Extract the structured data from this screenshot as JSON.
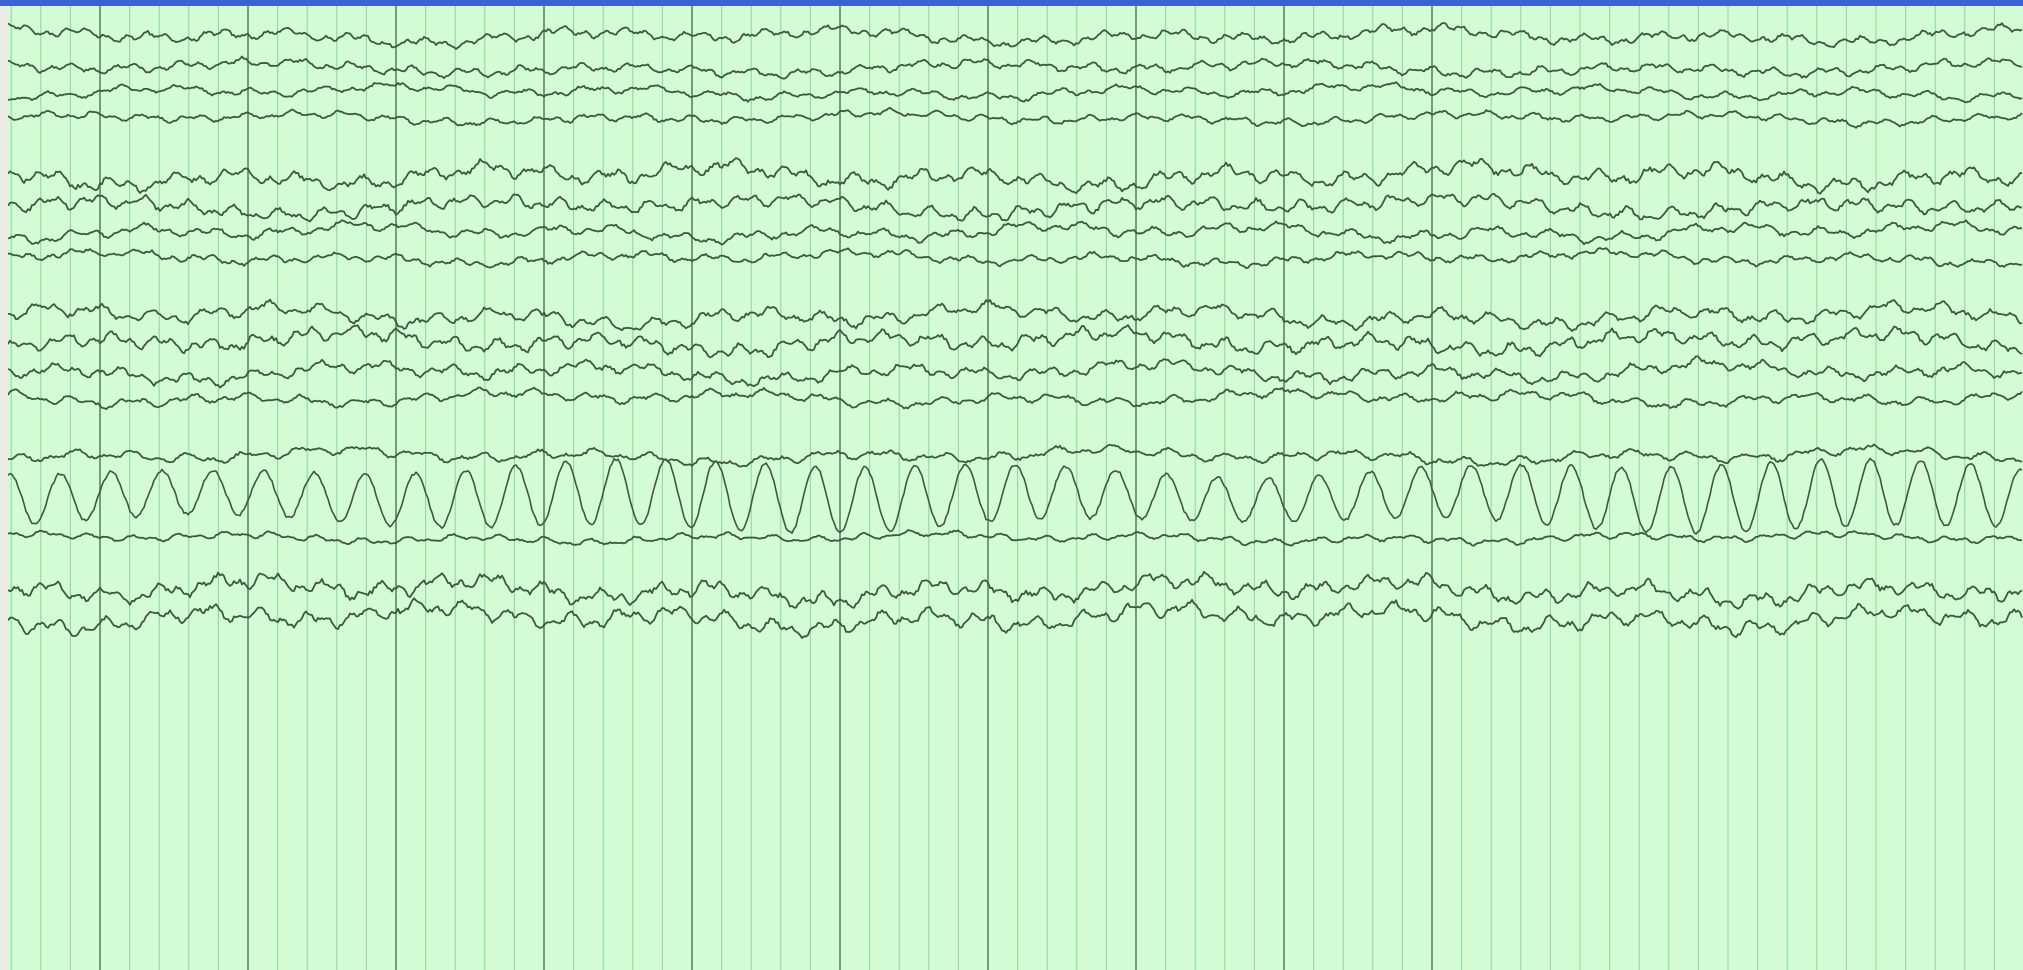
{
  "window": {
    "accent_color": "#3a62d6",
    "panel_background": "#d2fbd6",
    "gutter_color": "#ecece6"
  },
  "viewer": {
    "trace_color": "#3b5a3b",
    "grid_minor_color": "#8ed49a",
    "grid_major_color": "#6f9f78",
    "epoch_major_divisions": 10,
    "minor_per_major": 5,
    "channels": [
      {
        "group": 1,
        "amplitude": 0.22,
        "band": "beta"
      },
      {
        "group": 1,
        "amplitude": 0.2,
        "band": "beta"
      },
      {
        "group": 1,
        "amplitude": 0.18,
        "band": "beta"
      },
      {
        "group": 1,
        "amplitude": 0.16,
        "band": "beta"
      },
      {
        "group": 2,
        "amplitude": 0.32,
        "band": "beta"
      },
      {
        "group": 2,
        "amplitude": 0.28,
        "band": "beta"
      },
      {
        "group": 2,
        "amplitude": 0.22,
        "band": "beta"
      },
      {
        "group": 2,
        "amplitude": 0.18,
        "band": "beta"
      },
      {
        "group": 3,
        "amplitude": 0.28,
        "band": "beta"
      },
      {
        "group": 3,
        "amplitude": 0.3,
        "band": "beta"
      },
      {
        "group": 3,
        "amplitude": 0.26,
        "band": "beta"
      },
      {
        "group": 3,
        "amplitude": 0.2,
        "band": "beta"
      },
      {
        "group": 4,
        "amplitude": 0.2,
        "band": "beta"
      },
      {
        "group": 4,
        "amplitude": 1.0,
        "band": "alpha"
      },
      {
        "group": 4,
        "amplitude": 0.14,
        "band": "beta"
      },
      {
        "group": 5,
        "amplitude": 0.34,
        "band": "beta"
      },
      {
        "group": 5,
        "amplitude": 0.34,
        "band": "beta"
      }
    ]
  }
}
